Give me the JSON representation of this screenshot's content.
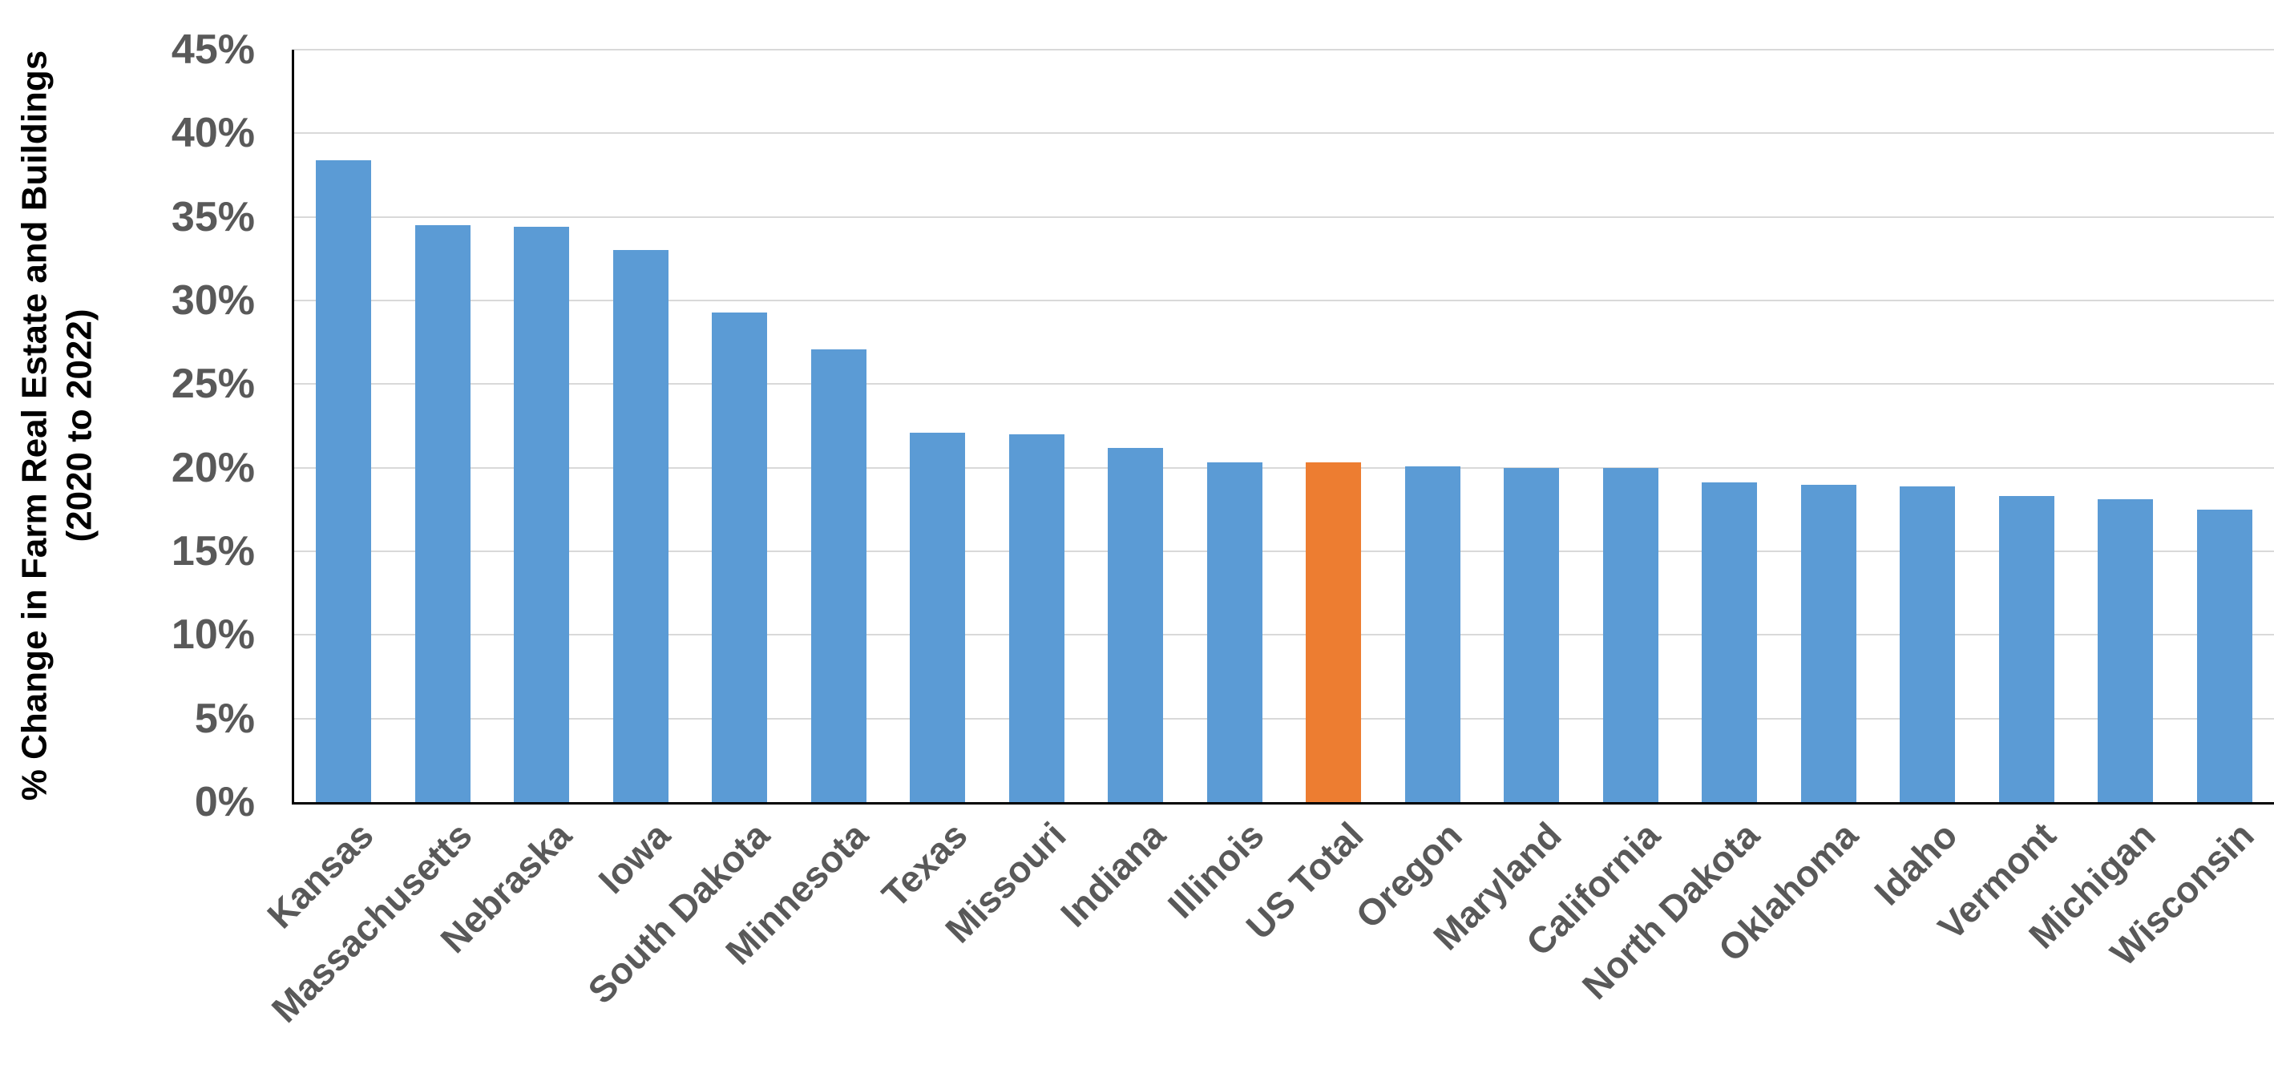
{
  "chart_data": {
    "type": "bar",
    "title": "",
    "ylabel": "% Change in Farm Real Estate and Buildings (2020 to 2022)",
    "ylabel_lines": [
      "% Change in Farm Real Estate and Buildings",
      "(2020 to 2022)"
    ],
    "xlabel": "",
    "categories": [
      "Kansas",
      "Massachusetts",
      "Nebraska",
      "Iowa",
      "South Dakota",
      "Minnesota",
      "Texas",
      "Missouri",
      "Indiana",
      "Illinois",
      "US Total",
      "Oregon",
      "Maryland",
      "California",
      "North Dakota",
      "Oklahoma",
      "Idaho",
      "Vermont",
      "Michigan",
      "Wisconsin"
    ],
    "values": [
      38.4,
      34.5,
      34.4,
      33.0,
      29.3,
      27.1,
      22.1,
      22.0,
      21.2,
      20.3,
      20.3,
      20.1,
      20.0,
      20.0,
      19.1,
      19.0,
      18.9,
      18.3,
      18.1,
      17.5
    ],
    "highlight_category": "US Total",
    "ylim": [
      0,
      45
    ],
    "y_tick_step": 5,
    "y_ticks": [
      "0%",
      "5%",
      "10%",
      "15%",
      "20%",
      "25%",
      "30%",
      "35%",
      "40%",
      "45%"
    ],
    "grid": true,
    "legend": "none"
  },
  "colors": {
    "background": "#FFFFFF",
    "bar_default": "#5B9BD5",
    "bar_highlight": "#ED7D31",
    "gridline": "#D9D9D9",
    "axis_line": "#000000",
    "tick_text": "#595959",
    "axis_title_text": "#000000"
  }
}
